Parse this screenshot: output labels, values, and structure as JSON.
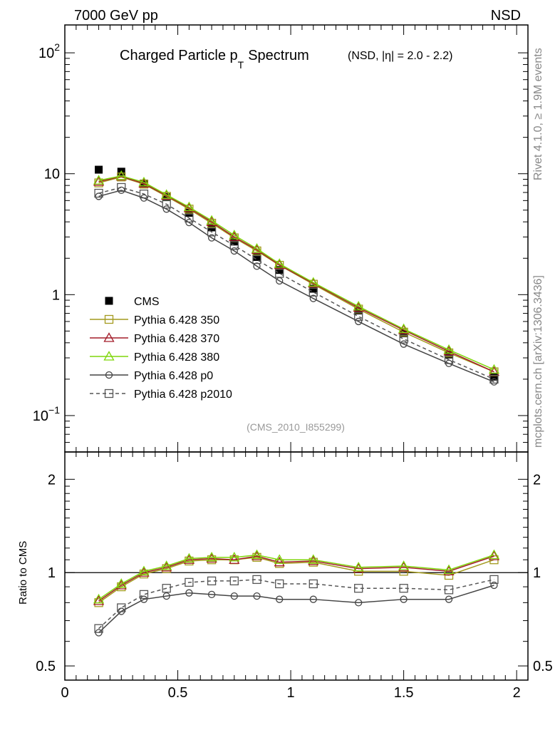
{
  "header": {
    "left": "7000 GeV pp",
    "right": "NSD"
  },
  "side": {
    "top": "Rivet 4.1.0, ≥ 1.9M events",
    "bottom": "mcplots.cern.ch [arXiv:1306.3436]"
  },
  "chart_data": [
    {
      "type": "scatter",
      "panel": "main",
      "title": "Charged Particle p",
      "title_sub": "T",
      "title_tail": "Spectrum",
      "subtitle": "(NSD, |η| = 2.0 - 2.2)",
      "watermark": "(CMS_2010_I855299)",
      "yscale": "log",
      "ylim": [
        0.05,
        170
      ],
      "xlim": [
        0,
        2.05
      ],
      "ytick_labels": [
        {
          "value": 0.1,
          "base": "10",
          "exp": "−1"
        },
        {
          "value": 1,
          "base": "1",
          "exp": ""
        },
        {
          "value": 10,
          "base": "10",
          "exp": ""
        },
        {
          "value": 100,
          "base": "10",
          "exp": "2"
        }
      ],
      "x": [
        0.15,
        0.25,
        0.35,
        0.45,
        0.55,
        0.65,
        0.75,
        0.85,
        0.95,
        1.1,
        1.3,
        1.5,
        1.7,
        1.9
      ],
      "series": [
        {
          "name": "CMS",
          "marker": "filled-square",
          "line": "none",
          "color": "#000000",
          "values": [
            10.8,
            10.4,
            8.3,
            6.4,
            4.75,
            3.6,
            2.75,
            2.05,
            1.6,
            1.12,
            0.74,
            0.48,
            0.32,
            0.21
          ]
        },
        {
          "name": "Pythia 6.428 350",
          "marker": "open-square",
          "line": "solid",
          "color": "#a39a1e",
          "values": [
            8.4,
            9.4,
            8.2,
            6.5,
            5.1,
            3.9,
            2.95,
            2.3,
            1.75,
            1.22,
            0.76,
            0.49,
            0.33,
            0.23
          ]
        },
        {
          "name": "Pythia 6.428 370",
          "marker": "open-triangle",
          "line": "solid",
          "color": "#a31d2a",
          "values": [
            8.6,
            9.5,
            8.3,
            6.6,
            5.2,
            4.0,
            3.0,
            2.35,
            1.76,
            1.24,
            0.78,
            0.51,
            0.34,
            0.23
          ]
        },
        {
          "name": "Pythia 6.428 380",
          "marker": "open-triangle",
          "line": "solid",
          "color": "#7fd60b",
          "values": [
            8.8,
            9.6,
            8.5,
            6.7,
            5.3,
            4.1,
            3.1,
            2.4,
            1.8,
            1.26,
            0.8,
            0.52,
            0.35,
            0.24
          ]
        },
        {
          "name": "Pythia 6.428 p0",
          "marker": "open-circle",
          "line": "solid",
          "color": "#444444",
          "values": [
            6.5,
            7.3,
            6.3,
            5.1,
            3.95,
            2.95,
            2.3,
            1.72,
            1.3,
            0.93,
            0.6,
            0.39,
            0.27,
            0.19
          ]
        },
        {
          "name": "Pythia 6.428 p2010",
          "marker": "open-square",
          "line": "dashed",
          "color": "#555555",
          "values": [
            6.9,
            7.7,
            6.8,
            5.6,
            4.3,
            3.3,
            2.55,
            1.95,
            1.5,
            1.05,
            0.66,
            0.43,
            0.29,
            0.2
          ]
        }
      ]
    },
    {
      "type": "scatter",
      "panel": "ratio",
      "ylabel": "Ratio to CMS",
      "xlabel": "",
      "yscale": "log",
      "ylim": [
        0.45,
        2.45
      ],
      "xlim": [
        0,
        2.05
      ],
      "reference_line": 1,
      "ytick_labels": [
        {
          "value": 0.5,
          "label": "0.5"
        },
        {
          "value": 1,
          "label": "1"
        },
        {
          "value": 2,
          "label": "2"
        }
      ],
      "xtick_labels": [
        {
          "value": 0,
          "label": "0"
        },
        {
          "value": 0.5,
          "label": "0.5"
        },
        {
          "value": 1,
          "label": "1"
        },
        {
          "value": 1.5,
          "label": "1.5"
        },
        {
          "value": 2,
          "label": "2"
        }
      ],
      "x": [
        0.15,
        0.25,
        0.35,
        0.45,
        0.55,
        0.65,
        0.75,
        0.85,
        0.95,
        1.1,
        1.3,
        1.5,
        1.7,
        1.9
      ],
      "series": [
        {
          "name": "Pythia 6.428 350",
          "marker": "open-square",
          "line": "solid",
          "color": "#a39a1e",
          "values": [
            0.8,
            0.9,
            0.99,
            1.03,
            1.09,
            1.1,
            1.1,
            1.12,
            1.07,
            1.08,
            1.01,
            1.01,
            0.98,
            1.1
          ]
        },
        {
          "name": "Pythia 6.428 370",
          "marker": "open-triangle",
          "line": "solid",
          "color": "#a31d2a",
          "values": [
            0.81,
            0.91,
            1.0,
            1.04,
            1.1,
            1.11,
            1.1,
            1.13,
            1.08,
            1.09,
            1.03,
            1.04,
            1.01,
            1.13
          ]
        },
        {
          "name": "Pythia 6.428 380",
          "marker": "open-triangle",
          "line": "solid",
          "color": "#7fd60b",
          "values": [
            0.82,
            0.92,
            1.01,
            1.05,
            1.11,
            1.12,
            1.12,
            1.14,
            1.1,
            1.1,
            1.04,
            1.05,
            1.02,
            1.14
          ]
        },
        {
          "name": "Pythia 6.428 p0",
          "marker": "open-circle",
          "line": "solid",
          "color": "#444444",
          "values": [
            0.64,
            0.75,
            0.82,
            0.84,
            0.86,
            0.85,
            0.84,
            0.84,
            0.82,
            0.82,
            0.8,
            0.82,
            0.82,
            0.91
          ]
        },
        {
          "name": "Pythia 6.428 p2010",
          "marker": "open-square",
          "line": "dashed",
          "color": "#555555",
          "values": [
            0.66,
            0.77,
            0.85,
            0.89,
            0.93,
            0.94,
            0.94,
            0.95,
            0.92,
            0.92,
            0.89,
            0.89,
            0.88,
            0.95
          ]
        }
      ]
    }
  ]
}
